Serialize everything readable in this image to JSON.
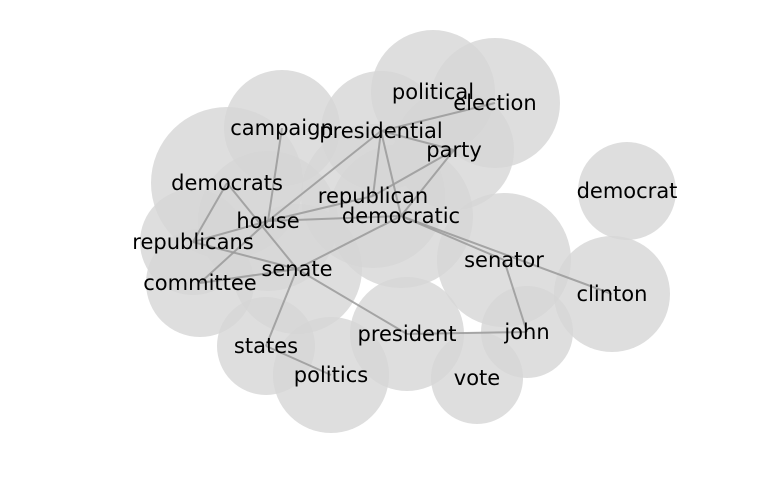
{
  "nodes": [
    {
      "id": "political",
      "label": "political"
    },
    {
      "id": "election",
      "label": "election"
    },
    {
      "id": "campaign",
      "label": "campaign"
    },
    {
      "id": "presidential",
      "label": "presidential"
    },
    {
      "id": "party",
      "label": "party"
    },
    {
      "id": "democrats",
      "label": "democrats"
    },
    {
      "id": "democrat",
      "label": "democrat"
    },
    {
      "id": "republican",
      "label": "republican"
    },
    {
      "id": "democratic",
      "label": "democratic"
    },
    {
      "id": "house",
      "label": "house"
    },
    {
      "id": "republicans",
      "label": "republicans"
    },
    {
      "id": "senator",
      "label": "senator"
    },
    {
      "id": "senate",
      "label": "senate"
    },
    {
      "id": "committee",
      "label": "committee"
    },
    {
      "id": "clinton",
      "label": "clinton"
    },
    {
      "id": "president",
      "label": "president"
    },
    {
      "id": "john",
      "label": "john"
    },
    {
      "id": "states",
      "label": "states"
    },
    {
      "id": "politics",
      "label": "politics"
    },
    {
      "id": "vote",
      "label": "vote"
    }
  ],
  "edges": [
    [
      "election",
      "presidential"
    ],
    [
      "party",
      "presidential"
    ],
    [
      "party",
      "republican"
    ],
    [
      "party",
      "democratic"
    ],
    [
      "presidential",
      "republican"
    ],
    [
      "presidential",
      "democratic"
    ],
    [
      "presidential",
      "house"
    ],
    [
      "campaign",
      "house"
    ],
    [
      "democrats",
      "republicans"
    ],
    [
      "democrats",
      "senate"
    ],
    [
      "republican",
      "house"
    ],
    [
      "democratic",
      "house"
    ],
    [
      "democratic",
      "senate"
    ],
    [
      "democratic",
      "senator"
    ],
    [
      "democratic",
      "clinton"
    ],
    [
      "house",
      "republicans"
    ],
    [
      "house",
      "committee"
    ],
    [
      "republicans",
      "senate"
    ],
    [
      "senate",
      "committee"
    ],
    [
      "senate",
      "states"
    ],
    [
      "senate",
      "president"
    ],
    [
      "senator",
      "john"
    ],
    [
      "president",
      "john"
    ],
    [
      "states",
      "politics"
    ]
  ]
}
